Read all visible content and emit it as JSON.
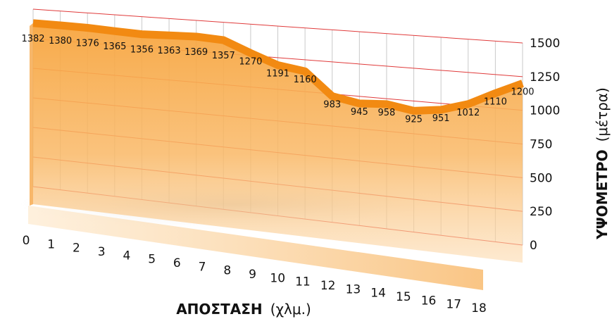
{
  "chart_data": {
    "type": "area",
    "x": [
      0,
      1,
      2,
      3,
      4,
      5,
      6,
      7,
      8,
      9,
      10,
      11,
      12,
      13,
      14,
      15,
      16,
      17,
      18
    ],
    "x_tick_labels": [
      "0",
      "1",
      "2",
      "3",
      "4",
      "5",
      "6",
      "7",
      "8",
      "9",
      "10",
      "11",
      "12",
      "13",
      "14",
      "15",
      "16",
      "17",
      "18"
    ],
    "values": [
      1382,
      1380,
      1376,
      1365,
      1356,
      1363,
      1369,
      1357,
      1270,
      1191,
      1160,
      983,
      945,
      958,
      925,
      951,
      1012,
      1110,
      1200
    ],
    "data_labels": [
      "1382",
      "1380",
      "1376",
      "1365",
      "1356",
      "1363",
      "1369",
      "1357",
      "1270",
      "1191",
      "1160",
      "983",
      "945",
      "958",
      "925",
      "951",
      "1012",
      "1110",
      "1200"
    ],
    "y_ticks": [
      "0",
      "250",
      "500",
      "750",
      "1000",
      "1250",
      "1500"
    ],
    "ylim": [
      0,
      1500
    ],
    "xlabel_bold": "ΑΠΟΣΤΑΣΗ",
    "xlabel_unit": "(χλμ.)",
    "ylabel_bold": "ΥΨΟΜΕΤΡΟ",
    "ylabel_unit": "(μέτρα)",
    "grid": true,
    "colors": {
      "line": "#f28a12",
      "fill": "#f9b866",
      "horizontal_grid": "#e03a3a",
      "vertical_grid": "#c9c9c9",
      "floor": "#fcd39f"
    }
  }
}
